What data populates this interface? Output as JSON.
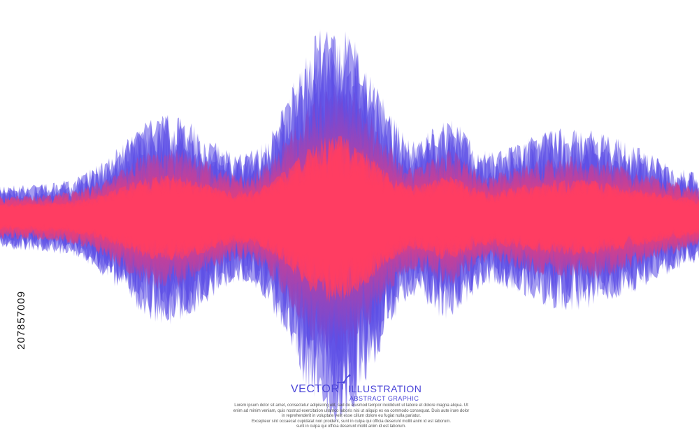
{
  "stock_id": "207857009",
  "title": {
    "word1": "VECTOR",
    "word2": "ILLUSTRATION",
    "subtitle": "ABSTRACT GRAPHIC",
    "icon": "pen-tool-icon"
  },
  "body_lines": [
    "Lorem ipsum dolor sit amet, consectetur adipiscing elit, sed do eiusmod tempor incididunt ut labore et dolore magna aliqua. Ut",
    "enim ad minim veniam, quis nostrud exercitation ullamco laboris nisi ut aliquip ex ea commodo consequat. Duis aute irure dolor",
    "in reprehenderit in voluptate velit esse cillum dolore eu fugiat nulla pariatur.",
    "Excepteur sint occaecat cupidatat non proident, sunt in culpa qui officia deserunt mollit anim id est laborum.",
    "sunt in culpa qui officia deserunt mollit anim id est laborum."
  ],
  "colors": {
    "wave_outer": "#5b4ce6",
    "wave_inner": "#ff3d63",
    "title_blue": "#4a45d8",
    "text_gray": "#555555"
  }
}
